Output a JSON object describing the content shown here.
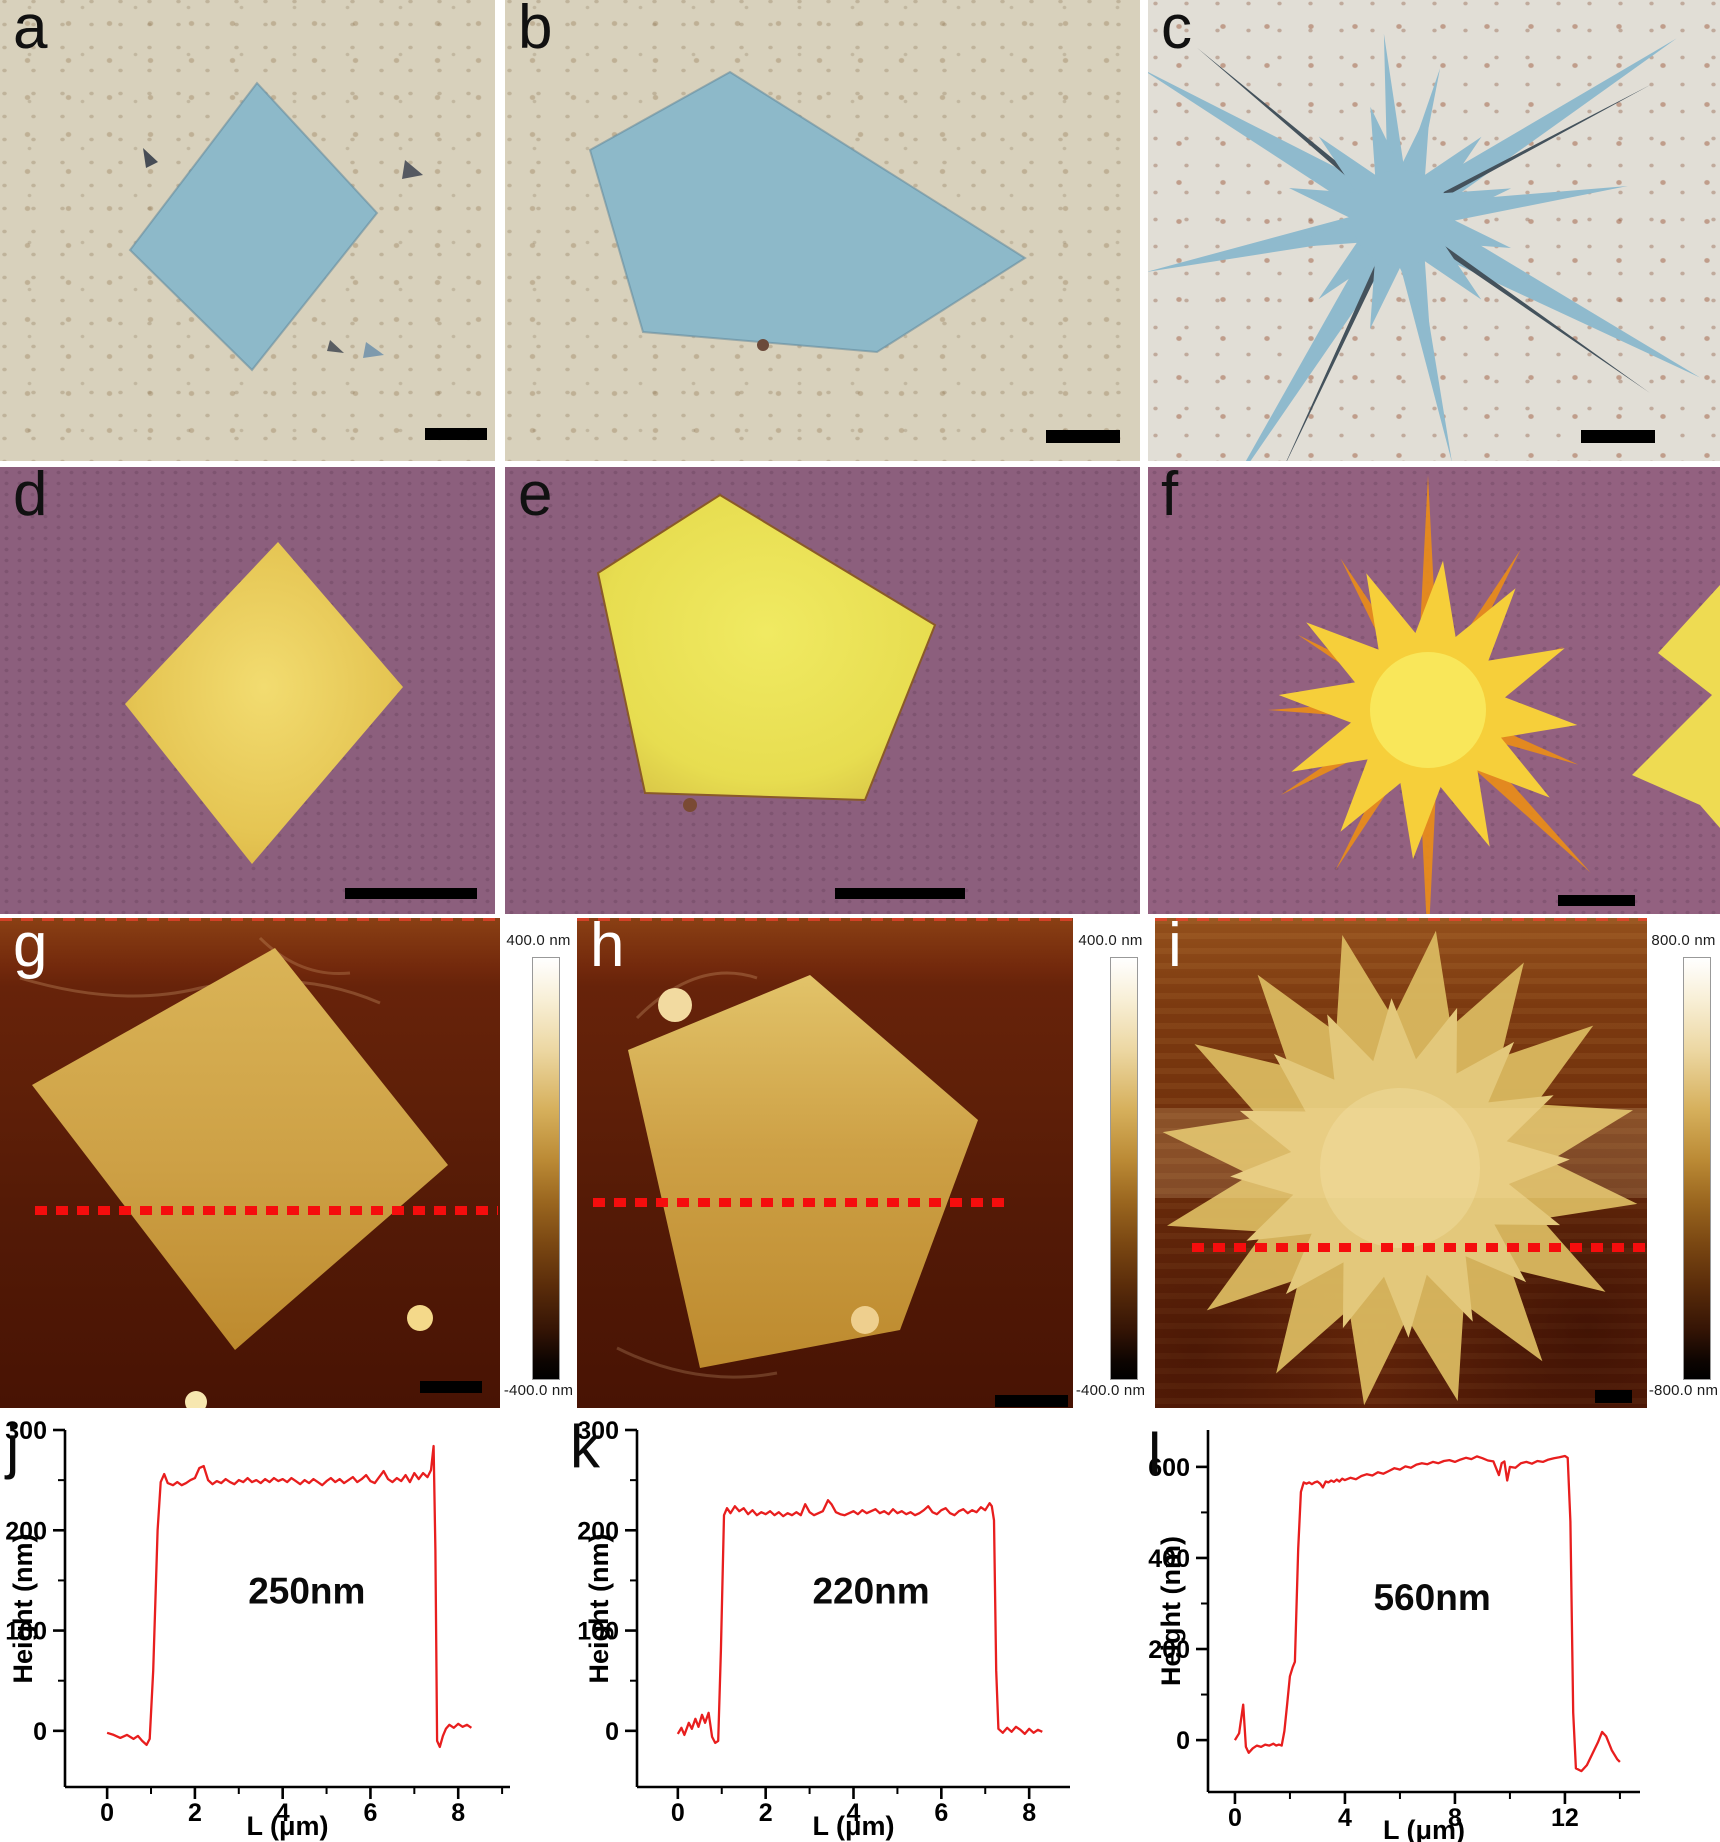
{
  "figure": {
    "panels": {
      "a": {
        "label": "a"
      },
      "b": {
        "label": "b"
      },
      "c": {
        "label": "c"
      },
      "d": {
        "label": "d"
      },
      "e": {
        "label": "e"
      },
      "f": {
        "label": "f"
      },
      "g": {
        "label": "g"
      },
      "h": {
        "label": "h"
      },
      "i": {
        "label": "i"
      },
      "j": {
        "label": "j"
      },
      "k": {
        "label": "k"
      },
      "l": {
        "label": "l"
      }
    },
    "colorbars": {
      "g": {
        "top_label": "400.0 nm",
        "bottom_label": "-400.0 nm"
      },
      "h": {
        "top_label": "400.0 nm",
        "bottom_label": "-400.0 nm"
      },
      "i": {
        "top_label": "800.0 nm",
        "bottom_label": "-800.0 nm"
      }
    },
    "colors": {
      "profile_line": "#e81e1e",
      "dotted_line": "#f50d0d",
      "optical_blue_crystal": "#8db9c9",
      "optical_yellow_crystal": "#e8c94f",
      "purple_background": "#8c5f7d",
      "beige_background": "#d8d1bc",
      "afm_background": "#64210a",
      "afm_crystal_gold": "#cda045"
    }
  },
  "chart_data": [
    {
      "panel": "j",
      "type": "line",
      "title": "",
      "xlabel": "L (μm)",
      "ylabel": "Height (nm)",
      "annotation": "250nm",
      "annotation_xy": [
        4.55,
        127
      ],
      "xlim": [
        -0.96,
        9.18
      ],
      "ylim": [
        -56,
        300
      ],
      "xticks": [
        0,
        2,
        4,
        6,
        8
      ],
      "xminor": [
        1,
        3,
        5,
        7,
        9
      ],
      "yticks": [
        0,
        100,
        200,
        300
      ],
      "yminor": [
        50,
        150,
        250
      ],
      "grid": false,
      "legend": null,
      "line_color": "#e81e1e",
      "points": [
        [
          0,
          -2
        ],
        [
          0.15,
          -4
        ],
        [
          0.3,
          -7
        ],
        [
          0.45,
          -4
        ],
        [
          0.6,
          -8
        ],
        [
          0.7,
          -5
        ],
        [
          0.8,
          -10
        ],
        [
          0.9,
          -14
        ],
        [
          0.97,
          -8
        ],
        [
          1.05,
          60
        ],
        [
          1.15,
          200
        ],
        [
          1.22,
          248
        ],
        [
          1.3,
          256
        ],
        [
          1.38,
          247
        ],
        [
          1.5,
          245
        ],
        [
          1.6,
          248
        ],
        [
          1.7,
          245
        ],
        [
          1.8,
          247
        ],
        [
          1.9,
          250
        ],
        [
          2.0,
          252
        ],
        [
          2.1,
          262
        ],
        [
          2.2,
          264
        ],
        [
          2.3,
          250
        ],
        [
          2.4,
          246
        ],
        [
          2.5,
          249
        ],
        [
          2.6,
          247
        ],
        [
          2.7,
          251
        ],
        [
          2.8,
          248
        ],
        [
          2.9,
          246
        ],
        [
          3.0,
          250
        ],
        [
          3.1,
          248
        ],
        [
          3.2,
          252
        ],
        [
          3.3,
          248
        ],
        [
          3.4,
          250
        ],
        [
          3.5,
          247
        ],
        [
          3.6,
          251
        ],
        [
          3.7,
          248
        ],
        [
          3.8,
          252
        ],
        [
          3.9,
          249
        ],
        [
          4.0,
          251
        ],
        [
          4.1,
          248
        ],
        [
          4.2,
          252
        ],
        [
          4.3,
          249
        ],
        [
          4.4,
          246
        ],
        [
          4.5,
          250
        ],
        [
          4.6,
          247
        ],
        [
          4.7,
          251
        ],
        [
          4.8,
          248
        ],
        [
          4.9,
          245
        ],
        [
          5.0,
          249
        ],
        [
          5.1,
          252
        ],
        [
          5.2,
          248
        ],
        [
          5.3,
          251
        ],
        [
          5.4,
          247
        ],
        [
          5.5,
          250
        ],
        [
          5.6,
          253
        ],
        [
          5.7,
          248
        ],
        [
          5.8,
          251
        ],
        [
          5.9,
          255
        ],
        [
          6.0,
          249
        ],
        [
          6.1,
          247
        ],
        [
          6.2,
          253
        ],
        [
          6.3,
          259
        ],
        [
          6.4,
          251
        ],
        [
          6.5,
          248
        ],
        [
          6.6,
          252
        ],
        [
          6.7,
          249
        ],
        [
          6.8,
          255
        ],
        [
          6.9,
          248
        ],
        [
          7.0,
          257
        ],
        [
          7.1,
          251
        ],
        [
          7.2,
          257
        ],
        [
          7.3,
          253
        ],
        [
          7.38,
          260
        ],
        [
          7.44,
          284
        ],
        [
          7.48,
          180
        ],
        [
          7.52,
          -10
        ],
        [
          7.58,
          -16
        ],
        [
          7.65,
          -5
        ],
        [
          7.72,
          2
        ],
        [
          7.8,
          6
        ],
        [
          7.9,
          3
        ],
        [
          8.0,
          7
        ],
        [
          8.1,
          4
        ],
        [
          8.2,
          6
        ],
        [
          8.3,
          3
        ]
      ]
    },
    {
      "panel": "k",
      "type": "line",
      "title": "",
      "xlabel": "L (μm)",
      "ylabel": "Height (nm)",
      "annotation": "220nm",
      "annotation_xy": [
        4.4,
        127
      ],
      "xlim": [
        -0.93,
        8.93
      ],
      "ylim": [
        -56,
        300
      ],
      "xticks": [
        0,
        2,
        4,
        6,
        8
      ],
      "xminor": [
        1,
        3,
        5,
        7
      ],
      "yticks": [
        0,
        100,
        200,
        300
      ],
      "yminor": [
        50,
        150,
        250
      ],
      "grid": false,
      "legend": null,
      "line_color": "#e81e1e",
      "points": [
        [
          0,
          -3
        ],
        [
          0.08,
          3
        ],
        [
          0.15,
          -4
        ],
        [
          0.25,
          8
        ],
        [
          0.32,
          2
        ],
        [
          0.4,
          12
        ],
        [
          0.47,
          4
        ],
        [
          0.55,
          16
        ],
        [
          0.62,
          8
        ],
        [
          0.7,
          18
        ],
        [
          0.78,
          -6
        ],
        [
          0.85,
          -12
        ],
        [
          0.92,
          -10
        ],
        [
          0.98,
          80
        ],
        [
          1.05,
          215
        ],
        [
          1.12,
          222
        ],
        [
          1.2,
          217
        ],
        [
          1.3,
          224
        ],
        [
          1.4,
          219
        ],
        [
          1.5,
          222
        ],
        [
          1.6,
          216
        ],
        [
          1.7,
          220
        ],
        [
          1.8,
          215
        ],
        [
          1.9,
          218
        ],
        [
          2.0,
          216
        ],
        [
          2.1,
          219
        ],
        [
          2.2,
          215
        ],
        [
          2.3,
          218
        ],
        [
          2.4,
          214
        ],
        [
          2.5,
          217
        ],
        [
          2.6,
          215
        ],
        [
          2.7,
          218
        ],
        [
          2.8,
          215
        ],
        [
          2.9,
          226
        ],
        [
          3.0,
          218
        ],
        [
          3.1,
          215
        ],
        [
          3.2,
          217
        ],
        [
          3.3,
          219
        ],
        [
          3.42,
          230
        ],
        [
          3.5,
          226
        ],
        [
          3.6,
          218
        ],
        [
          3.7,
          216
        ],
        [
          3.8,
          215
        ],
        [
          3.9,
          217
        ],
        [
          4.0,
          219
        ],
        [
          4.1,
          216
        ],
        [
          4.2,
          220
        ],
        [
          4.3,
          217
        ],
        [
          4.4,
          219
        ],
        [
          4.5,
          221
        ],
        [
          4.6,
          217
        ],
        [
          4.7,
          219
        ],
        [
          4.8,
          216
        ],
        [
          4.9,
          221
        ],
        [
          5.0,
          217
        ],
        [
          5.1,
          219
        ],
        [
          5.2,
          216
        ],
        [
          5.3,
          218
        ],
        [
          5.4,
          215
        ],
        [
          5.5,
          217
        ],
        [
          5.6,
          220
        ],
        [
          5.7,
          224
        ],
        [
          5.8,
          218
        ],
        [
          5.9,
          216
        ],
        [
          6.0,
          220
        ],
        [
          6.1,
          222
        ],
        [
          6.2,
          217
        ],
        [
          6.3,
          215
        ],
        [
          6.4,
          219
        ],
        [
          6.5,
          221
        ],
        [
          6.6,
          217
        ],
        [
          6.7,
          220
        ],
        [
          6.8,
          218
        ],
        [
          6.9,
          223
        ],
        [
          7.0,
          220
        ],
        [
          7.1,
          227
        ],
        [
          7.15,
          224
        ],
        [
          7.2,
          210
        ],
        [
          7.25,
          60
        ],
        [
          7.3,
          2
        ],
        [
          7.4,
          -2
        ],
        [
          7.5,
          3
        ],
        [
          7.6,
          -1
        ],
        [
          7.7,
          4
        ],
        [
          7.8,
          1
        ],
        [
          7.9,
          -3
        ],
        [
          8.0,
          2
        ],
        [
          8.1,
          -2
        ],
        [
          8.2,
          1
        ],
        [
          8.3,
          -1
        ]
      ]
    },
    {
      "panel": "l",
      "type": "line",
      "title": "",
      "xlabel": "L (μm)",
      "ylabel": "Height (nm)",
      "annotation": "560nm",
      "annotation_xy": [
        7.17,
        286
      ],
      "xlim": [
        -0.98,
        14.73
      ],
      "ylim": [
        -114,
        681
      ],
      "xticks": [
        0,
        4,
        8,
        12
      ],
      "xminor": [
        2,
        6,
        10,
        14
      ],
      "yticks": [
        0,
        200,
        400,
        600
      ],
      "yminor": [
        100,
        300,
        500
      ],
      "grid": false,
      "legend": null,
      "line_color": "#e81e1e",
      "points": [
        [
          0,
          0
        ],
        [
          0.15,
          15
        ],
        [
          0.3,
          78
        ],
        [
          0.4,
          -15
        ],
        [
          0.5,
          -28
        ],
        [
          0.65,
          -18
        ],
        [
          0.8,
          -12
        ],
        [
          0.95,
          -15
        ],
        [
          1.1,
          -10
        ],
        [
          1.25,
          -12
        ],
        [
          1.4,
          -8
        ],
        [
          1.5,
          -12
        ],
        [
          1.6,
          -10
        ],
        [
          1.7,
          -12
        ],
        [
          1.8,
          20
        ],
        [
          1.9,
          80
        ],
        [
          2.0,
          140
        ],
        [
          2.1,
          160
        ],
        [
          2.18,
          172
        ],
        [
          2.3,
          420
        ],
        [
          2.4,
          545
        ],
        [
          2.5,
          566
        ],
        [
          2.6,
          563
        ],
        [
          2.7,
          566
        ],
        [
          2.8,
          562
        ],
        [
          2.9,
          566
        ],
        [
          3.0,
          568
        ],
        [
          3.1,
          563
        ],
        [
          3.2,
          555
        ],
        [
          3.3,
          568
        ],
        [
          3.4,
          566
        ],
        [
          3.5,
          570
        ],
        [
          3.6,
          567
        ],
        [
          3.7,
          572
        ],
        [
          3.8,
          568
        ],
        [
          3.9,
          574
        ],
        [
          4.0,
          571
        ],
        [
          4.2,
          576
        ],
        [
          4.4,
          573
        ],
        [
          4.6,
          580
        ],
        [
          4.8,
          584
        ],
        [
          5.0,
          581
        ],
        [
          5.2,
          588
        ],
        [
          5.4,
          585
        ],
        [
          5.6,
          591
        ],
        [
          5.8,
          597
        ],
        [
          6.0,
          594
        ],
        [
          6.2,
          601
        ],
        [
          6.4,
          598
        ],
        [
          6.6,
          605
        ],
        [
          6.8,
          608
        ],
        [
          7.0,
          606
        ],
        [
          7.2,
          611
        ],
        [
          7.4,
          608
        ],
        [
          7.6,
          613
        ],
        [
          7.8,
          615
        ],
        [
          8.0,
          611
        ],
        [
          8.2,
          616
        ],
        [
          8.4,
          620
        ],
        [
          8.6,
          617
        ],
        [
          8.8,
          623
        ],
        [
          9.0,
          619
        ],
        [
          9.2,
          614
        ],
        [
          9.4,
          612
        ],
        [
          9.6,
          582
        ],
        [
          9.7,
          608
        ],
        [
          9.8,
          612
        ],
        [
          9.9,
          570
        ],
        [
          10.0,
          600
        ],
        [
          10.2,
          598
        ],
        [
          10.4,
          608
        ],
        [
          10.6,
          611
        ],
        [
          10.8,
          607
        ],
        [
          11.0,
          613
        ],
        [
          11.2,
          611
        ],
        [
          11.4,
          616
        ],
        [
          11.6,
          619
        ],
        [
          11.8,
          621
        ],
        [
          12.0,
          624
        ],
        [
          12.1,
          620
        ],
        [
          12.2,
          480
        ],
        [
          12.3,
          60
        ],
        [
          12.4,
          -62
        ],
        [
          12.6,
          -68
        ],
        [
          12.8,
          -55
        ],
        [
          13.0,
          -30
        ],
        [
          13.2,
          -5
        ],
        [
          13.35,
          18
        ],
        [
          13.5,
          8
        ],
        [
          13.7,
          -22
        ],
        [
          13.9,
          -42
        ],
        [
          14.0,
          -48
        ]
      ]
    }
  ]
}
